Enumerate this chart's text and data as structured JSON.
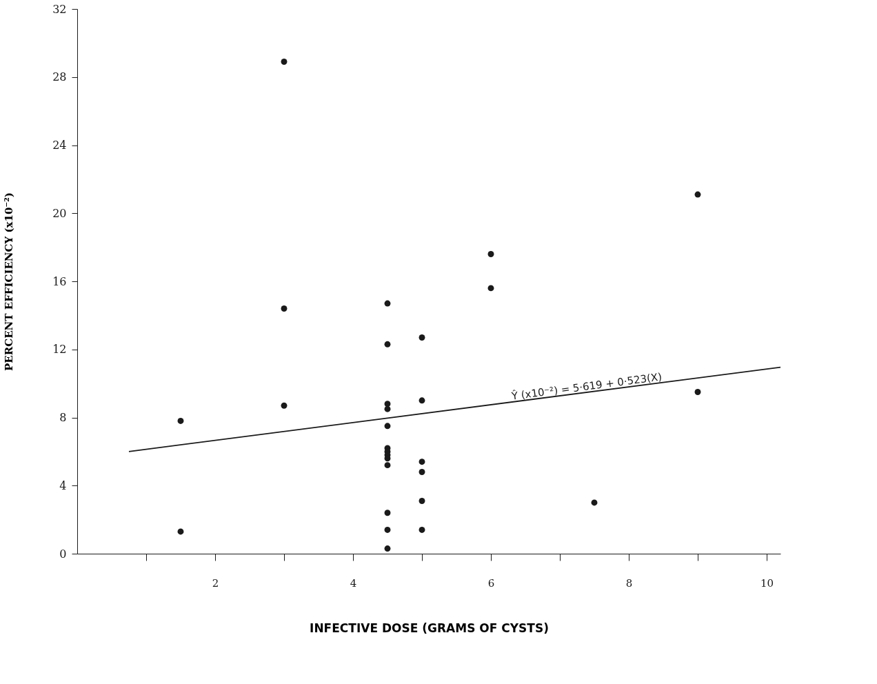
{
  "chart_data": {
    "type": "scatter",
    "xlabel": "INFECTIVE DOSE (GRAMS OF CYSTS)",
    "ylabel": "PERCENT EFFICIENCY (x10⁻²)",
    "xlim": [
      0,
      10.2
    ],
    "xticks": [
      {
        "value": 1,
        "label": null
      },
      2,
      {
        "value": 3,
        "label": null
      },
      4,
      {
        "value": 5,
        "label": null
      },
      6,
      {
        "value": 7,
        "label": null
      },
      8,
      {
        "value": 9,
        "label": null
      },
      10
    ],
    "ylim": [
      0,
      32
    ],
    "yticks": [
      0,
      4,
      8,
      12,
      16,
      20,
      24,
      28,
      32
    ],
    "grid": false,
    "series": [
      {
        "marker": "circle",
        "color": "#1a1a1a",
        "x": [
          1.5,
          1.5,
          3,
          3,
          3,
          4.5,
          4.5,
          4.5,
          4.5,
          4.5,
          4.5,
          4.5,
          4.5,
          4.5,
          4.5,
          4.5,
          4.5,
          4.5,
          5,
          5,
          5,
          5,
          5,
          5,
          6,
          6,
          7.5,
          9,
          9
        ],
        "values": [
          7.8,
          1.3,
          28.9,
          14.4,
          8.7,
          14.7,
          12.3,
          8.8,
          8.5,
          7.5,
          6.2,
          6.0,
          5.8,
          5.6,
          5.2,
          2.4,
          1.4,
          0.3,
          12.7,
          9.0,
          5.4,
          4.8,
          3.1,
          1.4,
          17.6,
          15.6,
          3.0,
          21.1,
          9.5
        ]
      },
      {
        "type": "line",
        "marker": "none",
        "color": "#1a1a1a",
        "line_style": "solid",
        "x": [
          0.75,
          10.2
        ],
        "values": [
          6.0,
          10.95
        ]
      }
    ],
    "annotations": [
      {
        "text": "Ŷ (x10⁻²) = 5·619 + 0·523(X)",
        "x": 7.4,
        "y": 9.5
      }
    ]
  }
}
